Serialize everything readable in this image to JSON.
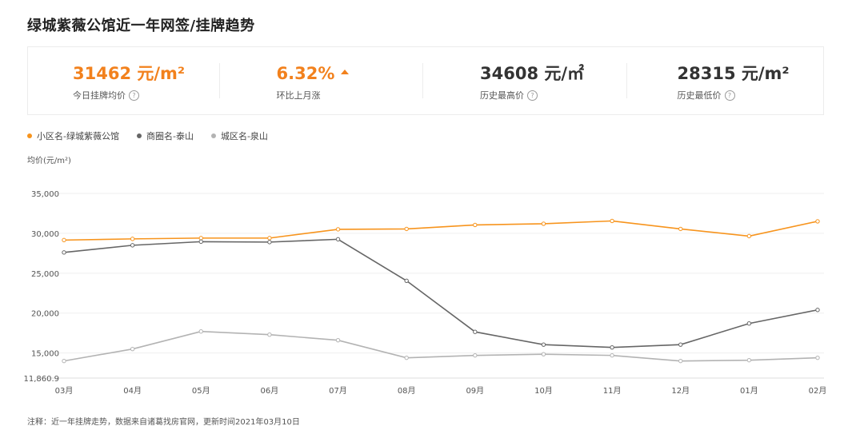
{
  "title": "绿城紫薇公馆近一年网签/挂牌趋势",
  "stats": [
    {
      "value": "31462 元/m²",
      "label": "今日挂牌均价",
      "help_icon": "question-circle-icon"
    },
    {
      "value": "6.32%",
      "label": "环比上月涨",
      "trend_icon": "triangle-up-icon"
    },
    {
      "value": "34608 元/㎡",
      "label": "历史最高价",
      "help_icon": "question-circle-icon"
    },
    {
      "value": "28315 元/m²",
      "label": "历史最低价",
      "help_icon": "question-circle-icon"
    }
  ],
  "colors": {
    "accent": "#f2811d",
    "series_community": "#f7941d",
    "series_business": "#666666",
    "series_district": "#b3b3b3",
    "text_dark": "#333333"
  },
  "note": "注释：近一年挂牌走势，数据来自诸葛找房官网，更新时间2021年03月10日",
  "chart_data": {
    "type": "line",
    "ylabel": "均价(元/m²)",
    "ylim": [
      11860.9,
      37000
    ],
    "y_ticks": [
      11860.9,
      15000,
      20000,
      25000,
      30000,
      35000
    ],
    "y_tick_labels": [
      "11,860.9",
      "15,000",
      "20,000",
      "25,000",
      "30,000",
      "35,000"
    ],
    "grid": true,
    "legend_position": "top-left",
    "categories": [
      "03月",
      "04月",
      "05月",
      "06月",
      "07月",
      "08月",
      "09月",
      "10月",
      "11月",
      "12月",
      "01月",
      "02月"
    ],
    "series": [
      {
        "name": "小区名-绿城紫薇公馆",
        "color": "#f7941d",
        "values": [
          29150,
          29300,
          29400,
          29400,
          30500,
          30550,
          31050,
          31200,
          31550,
          30550,
          29650,
          31500
        ]
      },
      {
        "name": "商圈名-泰山",
        "color": "#666666",
        "values": [
          27600,
          28500,
          28950,
          28900,
          29250,
          24050,
          17650,
          16050,
          15700,
          16050,
          18700,
          20400
        ]
      },
      {
        "name": "城区名-泉山",
        "color": "#b3b3b3",
        "values": [
          14000,
          15500,
          17700,
          17300,
          16600,
          14400,
          14700,
          14850,
          14700,
          14000,
          14100,
          14400
        ]
      }
    ]
  }
}
